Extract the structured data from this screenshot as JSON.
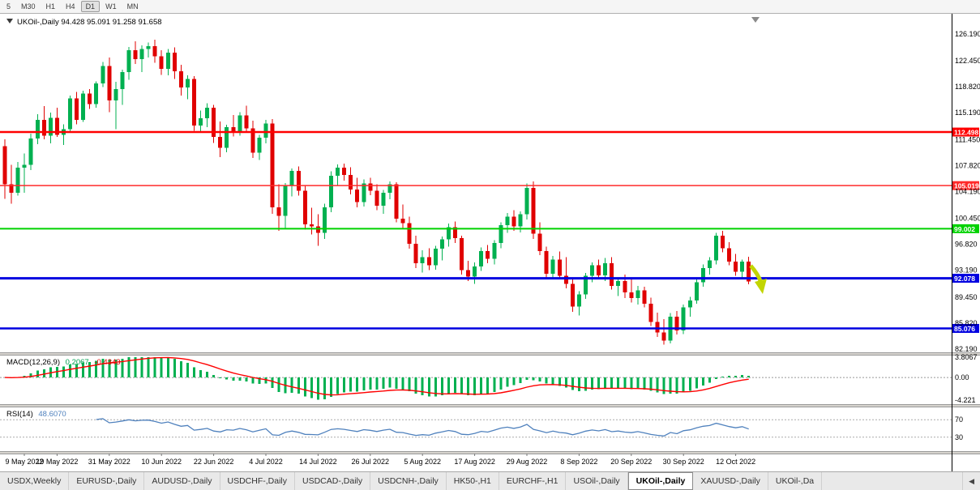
{
  "toolbar": {
    "timeframes": [
      "5",
      "M30",
      "H1",
      "H4",
      "D1",
      "W1",
      "MN"
    ],
    "active": "D1"
  },
  "chart": {
    "symbol": "UKOil-,Daily",
    "symbol_info": "UKOil-,Daily  94.428 95.091 91.258 91.658"
  },
  "price_axis": {
    "labels": [
      "126.190",
      "122.450",
      "118.820",
      "115.190",
      "111.450",
      "107.820",
      "104.190",
      "100.450",
      "96.820",
      "93.190",
      "89.450",
      "85.820",
      "82.190"
    ]
  },
  "price_lines": [
    {
      "price": 112.498,
      "label": "112.498",
      "color": "#ff0000",
      "width": 2.5
    },
    {
      "price": 105.019,
      "label": "105.019",
      "color": "#ff2a2a",
      "width": 1.5
    },
    {
      "price": 99.002,
      "label": "99.002",
      "color": "#00d200",
      "width": 2
    },
    {
      "price": 92.078,
      "label": "92.078",
      "color": "#0000e0",
      "width": 3
    },
    {
      "price": 85.076,
      "label": "85.076",
      "color": "#0000e0",
      "width": 2.5
    }
  ],
  "macd": {
    "label": "MACD(12,26,9)",
    "value": "0.2067",
    "signal_value": "-0.4343",
    "axis": [
      "3.8067",
      "0.00",
      "-4.221"
    ],
    "range": [
      -4.221,
      3.8067
    ]
  },
  "rsi": {
    "label": "RSI(14)",
    "value": "48.6070",
    "axis": [
      "70",
      "30"
    ],
    "levels": [
      70,
      30
    ]
  },
  "date_axis": [
    "9 May 2022",
    "19 May 2022",
    "31 May 2022",
    "10 Jun 2022",
    "22 Jun 2022",
    "4 Jul 2022",
    "14 Jul 2022",
    "26 Jul 2022",
    "5 Aug 2022",
    "17 Aug 2022",
    "29 Aug 2022",
    "8 Sep 2022",
    "20 Sep 2022",
    "30 Sep 2022",
    "12 Oct 2022"
  ],
  "tabs": {
    "items": [
      "USDX,Weekly",
      "EURUSD-,Daily",
      "AUDUSD-,Daily",
      "USDCHF-,Daily",
      "USDCAD-,Daily",
      "USDCNH-,Daily",
      "HK50-,H1",
      "EURCHF-,H1",
      "USOil-,Daily",
      "UKOil-,Daily",
      "XAUUSD-,Daily",
      "UKOil-,Da"
    ],
    "active_index": 9,
    "scroll_left_icon": "◀"
  },
  "colors": {
    "up": "#00b050",
    "down": "#e00000",
    "macd_hist": "#00b050",
    "macd_signal": "#ff0000",
    "rsi_line": "#4f81bd",
    "dashed_level": "#aaaaaa",
    "arrow": "#c2d500",
    "shift_marker": "#8a8a8a"
  },
  "annotations": {
    "sell_arrow_color": "#c2d500"
  },
  "chart_data": {
    "type": "candlestick",
    "symbol": "UKOil-,Daily",
    "ohlc_current": {
      "open": 94.428,
      "high": 95.091,
      "low": 91.258,
      "close": 91.658
    },
    "y_range": [
      82.19,
      126.19
    ],
    "horizontal_levels": [
      112.498,
      105.019,
      99.002,
      92.078,
      85.076
    ],
    "indicators": [
      {
        "name": "MACD",
        "params": "12,26,9",
        "value": 0.2067,
        "signal": -0.4343,
        "axis_range": [
          -4.221,
          3.8067
        ]
      },
      {
        "name": "RSI",
        "params": "14",
        "value": 48.607,
        "levels": [
          70,
          30
        ]
      }
    ],
    "x_tick_step": 8,
    "candles": [
      [
        110.5,
        111.5,
        103.2,
        105.2
      ],
      [
        105.2,
        107.9,
        102.5,
        104.0
      ],
      [
        104.0,
        108.3,
        103.6,
        107.5
      ],
      [
        107.5,
        109.5,
        104.0,
        107.9
      ],
      [
        107.9,
        112.3,
        107.2,
        111.6
      ],
      [
        111.6,
        115.0,
        110.8,
        114.2
      ],
      [
        114.2,
        116.1,
        111.5,
        112.0
      ],
      [
        112.0,
        115.2,
        110.9,
        114.5
      ],
      [
        114.5,
        115.9,
        111.8,
        112.1
      ],
      [
        112.1,
        113.6,
        110.7,
        112.9
      ],
      [
        112.9,
        117.6,
        112.4,
        117.2
      ],
      [
        117.2,
        118.1,
        113.6,
        114.2
      ],
      [
        114.2,
        118.3,
        113.9,
        117.9
      ],
      [
        117.9,
        118.5,
        115.7,
        116.4
      ],
      [
        116.4,
        119.6,
        115.9,
        119.3
      ],
      [
        119.3,
        122.3,
        118.8,
        121.7
      ],
      [
        121.7,
        122.9,
        115.3,
        116.9
      ],
      [
        116.9,
        119.5,
        112.9,
        118.5
      ],
      [
        118.5,
        121.2,
        116.3,
        120.9
      ],
      [
        120.9,
        124.4,
        119.8,
        123.9
      ],
      [
        123.9,
        125.2,
        122.0,
        122.7
      ],
      [
        122.7,
        124.6,
        120.9,
        124.1
      ],
      [
        124.1,
        125.0,
        122.9,
        124.5
      ],
      [
        124.5,
        125.4,
        122.2,
        123.1
      ],
      [
        123.1,
        123.9,
        120.5,
        121.3
      ],
      [
        121.3,
        124.1,
        120.4,
        123.6
      ],
      [
        123.6,
        124.3,
        119.9,
        121.0
      ],
      [
        121.0,
        121.9,
        117.6,
        118.7
      ],
      [
        118.7,
        120.4,
        117.1,
        119.9
      ],
      [
        119.9,
        120.3,
        112.7,
        113.4
      ],
      [
        113.4,
        115.5,
        112.5,
        114.4
      ],
      [
        114.4,
        116.5,
        113.2,
        115.9
      ],
      [
        115.9,
        116.3,
        111.0,
        111.8
      ],
      [
        111.8,
        114.0,
        109.0,
        110.3
      ],
      [
        110.3,
        113.5,
        109.7,
        113.2
      ],
      [
        113.2,
        114.9,
        111.9,
        112.5
      ],
      [
        112.5,
        115.3,
        112.0,
        114.8
      ],
      [
        114.8,
        116.2,
        112.4,
        113.0
      ],
      [
        113.0,
        114.1,
        108.9,
        109.6
      ],
      [
        109.6,
        112.1,
        108.6,
        111.7
      ],
      [
        111.7,
        114.2,
        110.9,
        113.7
      ],
      [
        113.7,
        114.3,
        101.1,
        102.0
      ],
      [
        102.0,
        105.2,
        98.7,
        100.8
      ],
      [
        100.8,
        105.4,
        99.0,
        105.0
      ],
      [
        105.0,
        107.4,
        103.5,
        107.1
      ],
      [
        107.1,
        107.7,
        103.6,
        104.3
      ],
      [
        104.3,
        105.0,
        98.9,
        99.6
      ],
      [
        99.6,
        101.9,
        98.2,
        99.3
      ],
      [
        99.3,
        101.0,
        96.6,
        98.4
      ],
      [
        98.4,
        102.5,
        97.6,
        102.0
      ],
      [
        102.0,
        107.0,
        101.3,
        106.4
      ],
      [
        106.4,
        108.0,
        105.0,
        107.5
      ],
      [
        107.5,
        108.1,
        105.7,
        106.5
      ],
      [
        106.5,
        107.6,
        103.8,
        104.5
      ],
      [
        104.5,
        106.1,
        102.0,
        102.7
      ],
      [
        102.7,
        105.9,
        102.1,
        105.3
      ],
      [
        105.3,
        106.1,
        103.7,
        104.3
      ],
      [
        104.3,
        105.2,
        101.6,
        102.2
      ],
      [
        102.2,
        104.4,
        101.1,
        104.0
      ],
      [
        104.0,
        105.6,
        103.1,
        105.2
      ],
      [
        105.2,
        105.5,
        99.9,
        100.4
      ],
      [
        100.4,
        102.4,
        99.0,
        99.8
      ],
      [
        99.8,
        100.7,
        96.2,
        96.9
      ],
      [
        96.9,
        98.0,
        93.5,
        94.2
      ],
      [
        94.2,
        96.0,
        92.9,
        95.0
      ],
      [
        95.0,
        96.3,
        93.2,
        93.9
      ],
      [
        93.9,
        96.6,
        93.3,
        96.2
      ],
      [
        96.2,
        97.9,
        94.6,
        97.5
      ],
      [
        97.5,
        99.7,
        96.5,
        99.2
      ],
      [
        99.2,
        100.0,
        97.0,
        97.7
      ],
      [
        97.7,
        98.0,
        92.6,
        93.2
      ],
      [
        93.2,
        94.5,
        91.7,
        92.3
      ],
      [
        92.3,
        94.3,
        91.3,
        93.7
      ],
      [
        93.7,
        96.4,
        93.1,
        95.9
      ],
      [
        95.9,
        96.7,
        94.2,
        94.8
      ],
      [
        94.8,
        97.4,
        94.0,
        97.0
      ],
      [
        97.0,
        99.9,
        96.3,
        99.5
      ],
      [
        99.5,
        101.2,
        98.4,
        100.7
      ],
      [
        100.7,
        101.6,
        98.7,
        99.3
      ],
      [
        99.3,
        101.4,
        98.5,
        101.0
      ],
      [
        101.0,
        105.3,
        100.3,
        104.7
      ],
      [
        104.7,
        105.6,
        97.6,
        98.3
      ],
      [
        98.3,
        99.9,
        95.3,
        95.9
      ],
      [
        95.9,
        96.5,
        92.0,
        92.7
      ],
      [
        92.7,
        95.2,
        91.9,
        94.7
      ],
      [
        94.7,
        95.8,
        91.9,
        92.4
      ],
      [
        92.4,
        95.0,
        90.7,
        91.3
      ],
      [
        91.3,
        92.1,
        87.4,
        88.1
      ],
      [
        88.1,
        90.3,
        86.9,
        89.8
      ],
      [
        89.8,
        92.8,
        89.2,
        92.4
      ],
      [
        92.4,
        94.3,
        91.5,
        93.9
      ],
      [
        93.9,
        94.7,
        92.0,
        92.5
      ],
      [
        92.5,
        94.9,
        91.7,
        94.2
      ],
      [
        94.2,
        95.0,
        90.5,
        91.0
      ],
      [
        91.0,
        92.2,
        89.6,
        91.7
      ],
      [
        91.7,
        92.6,
        89.3,
        90.1
      ],
      [
        90.1,
        92.0,
        88.7,
        89.3
      ],
      [
        89.3,
        91.0,
        88.4,
        90.4
      ],
      [
        90.4,
        90.9,
        88.0,
        88.5
      ],
      [
        88.5,
        89.4,
        85.4,
        86.0
      ],
      [
        86.0,
        87.3,
        83.9,
        84.5
      ],
      [
        84.5,
        86.4,
        82.8,
        83.4
      ],
      [
        83.4,
        87.2,
        83.0,
        86.7
      ],
      [
        86.7,
        87.5,
        84.2,
        84.8
      ],
      [
        84.8,
        88.4,
        84.3,
        88.0
      ],
      [
        88.0,
        89.5,
        86.7,
        89.0
      ],
      [
        89.0,
        91.9,
        88.5,
        91.5
      ],
      [
        91.5,
        94.0,
        90.9,
        93.5
      ],
      [
        93.5,
        95.0,
        92.6,
        94.6
      ],
      [
        94.6,
        98.4,
        94.0,
        98.0
      ],
      [
        98.0,
        98.7,
        95.7,
        96.3
      ],
      [
        96.3,
        97.1,
        93.9,
        94.4
      ],
      [
        94.4,
        95.5,
        92.4,
        93.0
      ],
      [
        93.0,
        94.7,
        92.0,
        94.4
      ],
      [
        94.428,
        95.091,
        91.258,
        91.658
      ]
    ]
  }
}
